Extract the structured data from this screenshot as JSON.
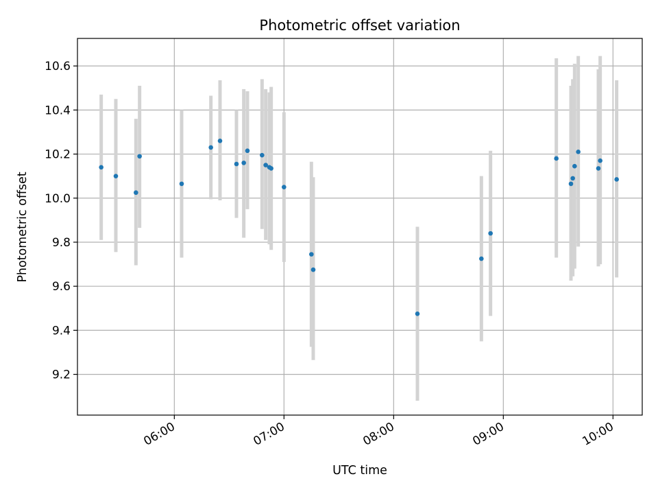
{
  "chart_data": {
    "type": "scatter",
    "title": "Photometric offset variation",
    "xlabel": "UTC time",
    "ylabel": "Photometric offset",
    "xlim": [
      "05:07",
      "10:16"
    ],
    "ylim": [
      9.015,
      10.725
    ],
    "x_ticks": [
      "06:00",
      "07:00",
      "08:00",
      "09:00",
      "10:00"
    ],
    "y_ticks": [
      9.2,
      9.4,
      9.6,
      9.8,
      10.0,
      10.2,
      10.4,
      10.6
    ],
    "grid": true,
    "colors": {
      "marker": "#1f77b4",
      "errorbar": "#d3d3d3",
      "grid": "#b0b0b0"
    },
    "points": [
      {
        "time": "05:20",
        "y": 10.14,
        "err_low": 9.81,
        "err_high": 10.47
      },
      {
        "time": "05:28",
        "y": 10.1,
        "err_low": 9.755,
        "err_high": 10.45
      },
      {
        "time": "05:39",
        "y": 10.025,
        "err_low": 9.695,
        "err_high": 10.36
      },
      {
        "time": "05:41",
        "y": 10.19,
        "err_low": 9.865,
        "err_high": 10.51
      },
      {
        "time": "06:04",
        "y": 10.065,
        "err_low": 9.73,
        "err_high": 10.4
      },
      {
        "time": "06:20",
        "y": 10.23,
        "err_low": 9.995,
        "err_high": 10.465
      },
      {
        "time": "06:25",
        "y": 10.26,
        "err_low": 9.99,
        "err_high": 10.535
      },
      {
        "time": "06:34",
        "y": 10.155,
        "err_low": 9.91,
        "err_high": 10.4
      },
      {
        "time": "06:38",
        "y": 10.16,
        "err_low": 9.82,
        "err_high": 10.495
      },
      {
        "time": "06:40",
        "y": 10.215,
        "err_low": 9.95,
        "err_high": 10.485
      },
      {
        "time": "06:48",
        "y": 10.195,
        "err_low": 9.86,
        "err_high": 10.54
      },
      {
        "time": "06:50",
        "y": 10.15,
        "err_low": 9.81,
        "err_high": 10.495
      },
      {
        "time": "06:52",
        "y": 10.14,
        "err_low": 9.79,
        "err_high": 10.48
      },
      {
        "time": "06:53",
        "y": 10.135,
        "err_low": 9.765,
        "err_high": 10.505
      },
      {
        "time": "07:00",
        "y": 10.05,
        "err_low": 9.71,
        "err_high": 10.39
      },
      {
        "time": "07:15",
        "y": 9.745,
        "err_low": 9.325,
        "err_high": 10.165
      },
      {
        "time": "07:16",
        "y": 9.675,
        "err_low": 9.265,
        "err_high": 10.095
      },
      {
        "time": "08:13",
        "y": 9.475,
        "err_low": 9.08,
        "err_high": 9.87
      },
      {
        "time": "08:48",
        "y": 9.725,
        "err_low": 9.35,
        "err_high": 10.1
      },
      {
        "time": "08:53",
        "y": 9.84,
        "err_low": 9.465,
        "err_high": 10.215
      },
      {
        "time": "09:29",
        "y": 10.18,
        "err_low": 9.73,
        "err_high": 10.635
      },
      {
        "time": "09:37",
        "y": 10.065,
        "err_low": 9.625,
        "err_high": 10.51
      },
      {
        "time": "09:38",
        "y": 10.09,
        "err_low": 9.645,
        "err_high": 10.54
      },
      {
        "time": "09:39",
        "y": 10.145,
        "err_low": 9.68,
        "err_high": 10.61
      },
      {
        "time": "09:41",
        "y": 10.21,
        "err_low": 9.78,
        "err_high": 10.645
      },
      {
        "time": "09:52",
        "y": 10.135,
        "err_low": 9.69,
        "err_high": 10.585
      },
      {
        "time": "09:53",
        "y": 10.17,
        "err_low": 9.7,
        "err_high": 10.645
      },
      {
        "time": "10:02",
        "y": 10.085,
        "err_low": 9.64,
        "err_high": 10.535
      }
    ]
  }
}
